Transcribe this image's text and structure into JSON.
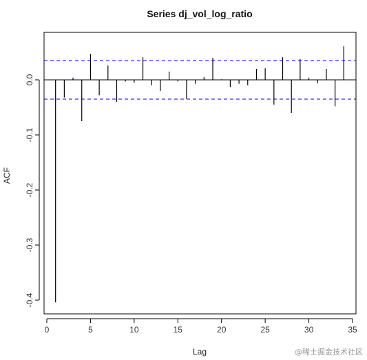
{
  "chart_data": {
    "type": "bar",
    "title": "Series dj_vol_log_ratio",
    "xlabel": "Lag",
    "ylabel": "ACF",
    "xlim": [
      0,
      35
    ],
    "ylim": [
      -0.42,
      0.075
    ],
    "xticks": [
      0,
      5,
      10,
      15,
      20,
      25,
      30,
      35
    ],
    "yticks": [
      -0.4,
      -0.3,
      -0.2,
      -0.1,
      0.0
    ],
    "ytick_labels": [
      "-0.4",
      "-0.3",
      "-0.2",
      "-0.1",
      "0.0"
    ],
    "confidence_band": 0.035,
    "series": [
      {
        "lags": [
          1,
          2,
          3,
          4,
          5,
          6,
          7,
          8,
          9,
          10,
          11,
          12,
          13,
          14,
          15,
          16,
          17,
          18,
          19,
          20,
          21,
          22,
          23,
          24,
          25,
          26,
          27,
          28,
          29,
          30,
          31,
          32,
          33,
          34
        ],
        "values": [
          -0.404,
          -0.032,
          0.004,
          -0.075,
          0.047,
          -0.028,
          0.026,
          -0.04,
          -0.003,
          -0.005,
          0.041,
          -0.01,
          -0.02,
          0.015,
          -0.003,
          -0.035,
          -0.007,
          0.005,
          0.04,
          0.001,
          -0.013,
          -0.007,
          -0.01,
          0.02,
          0.021,
          -0.045,
          0.041,
          -0.06,
          0.038,
          0.004,
          -0.006,
          0.02,
          -0.048,
          0.061
        ]
      }
    ],
    "grid": false,
    "legend": "none",
    "colors": {
      "bars": "#000000",
      "band": "#0000cc",
      "axis": "#000000"
    }
  },
  "watermark": "@稀土掘金技术社区"
}
